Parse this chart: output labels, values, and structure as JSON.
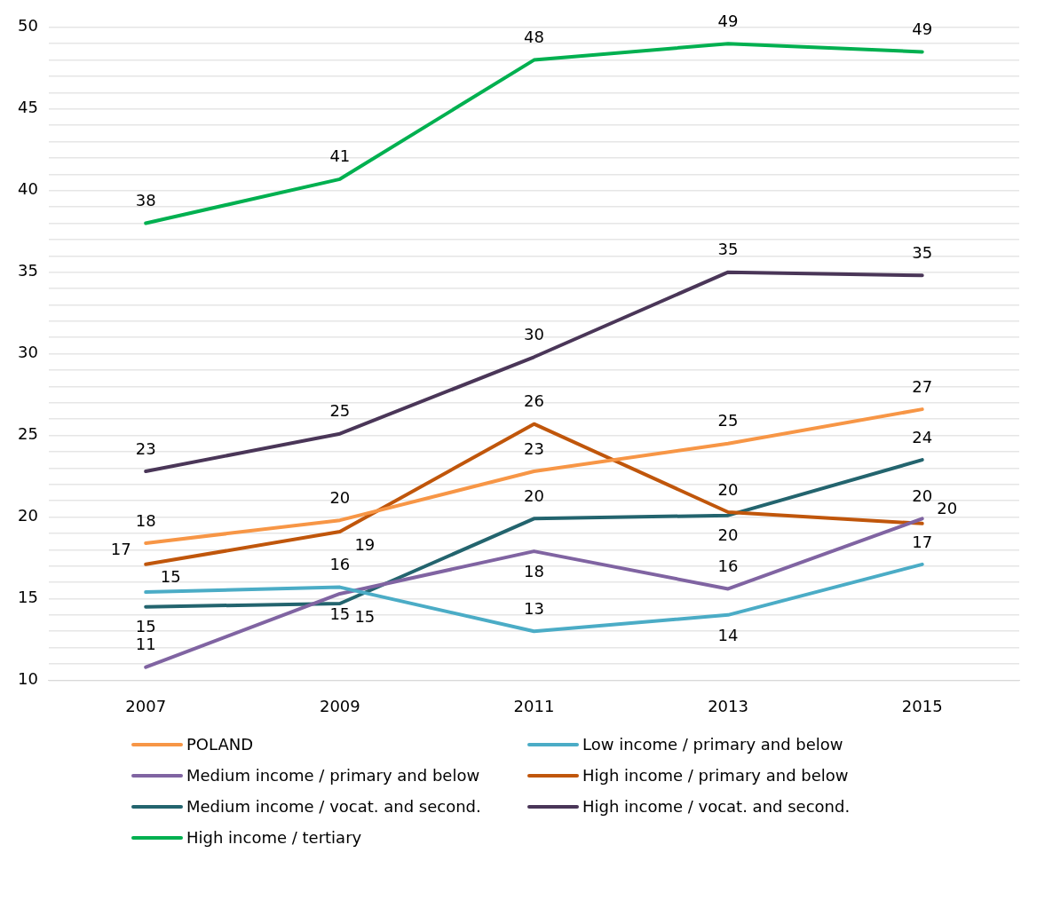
{
  "chart_data": {
    "type": "line",
    "categories": [
      "2007",
      "2009",
      "2011",
      "2013",
      "2015"
    ],
    "series": [
      {
        "name": "POLAND",
        "color": "#f79646",
        "values": [
          18.4,
          19.8,
          22.8,
          24.5,
          26.6
        ],
        "value_labels": [
          "18",
          "20",
          "23",
          "25",
          "27"
        ]
      },
      {
        "name": "Low income / primary and below",
        "color": "#4bacc6",
        "values": [
          15.4,
          15.7,
          13.0,
          14.0,
          17.1
        ],
        "value_labels": [
          "15",
          "16",
          "13",
          "14",
          "17"
        ]
      },
      {
        "name": "Medium income / primary and below",
        "color": "#8064a2",
        "values": [
          10.8,
          15.3,
          17.9,
          15.6,
          19.9
        ],
        "value_labels": [
          "11",
          "15",
          "18",
          "16",
          "20"
        ]
      },
      {
        "name": "High income / primary and below",
        "color": "#c0560b",
        "values": [
          17.1,
          19.1,
          25.7,
          20.3,
          19.6
        ],
        "value_labels": [
          "17",
          "19",
          "26",
          "20",
          "20"
        ]
      },
      {
        "name": "Medium income / vocat. and second.",
        "color": "#23646e",
        "values": [
          14.5,
          14.7,
          19.9,
          20.1,
          23.5
        ],
        "value_labels": [
          "15",
          "15",
          "20",
          "20",
          "24"
        ]
      },
      {
        "name": "High income / vocat. and second.",
        "color": "#4a3658",
        "values": [
          22.8,
          25.1,
          29.8,
          35.0,
          34.8
        ],
        "value_labels": [
          "23",
          "25",
          "30",
          "35",
          "35"
        ]
      },
      {
        "name": "High income / tertiary",
        "color": "#00b050",
        "values": [
          38.0,
          40.7,
          48.0,
          49.0,
          48.5
        ],
        "value_labels": [
          "38",
          "41",
          "48",
          "49",
          "49"
        ]
      }
    ],
    "ylim": [
      10,
      50
    ],
    "yticks": [
      10,
      {
        "value": 11,
        "label": null
      },
      {
        "value": 12,
        "label": null
      },
      {
        "value": 13,
        "label": null
      },
      {
        "value": 14,
        "label": null
      },
      15,
      {
        "value": 16,
        "label": null
      },
      {
        "value": 17,
        "label": null
      },
      {
        "value": 18,
        "label": null
      },
      {
        "value": 19,
        "label": null
      },
      20,
      {
        "value": 21,
        "label": null
      },
      {
        "value": 22,
        "label": null
      },
      {
        "value": 23,
        "label": null
      },
      {
        "value": 24,
        "label": null
      },
      25,
      {
        "value": 26,
        "label": null
      },
      {
        "value": 27,
        "label": null
      },
      {
        "value": 28,
        "label": null
      },
      {
        "value": 29,
        "label": null
      },
      30,
      {
        "value": 31,
        "label": null
      },
      {
        "value": 32,
        "label": null
      },
      {
        "value": 33,
        "label": null
      },
      {
        "value": 34,
        "label": null
      },
      35,
      {
        "value": 36,
        "label": null
      },
      {
        "value": 37,
        "label": null
      },
      {
        "value": 38,
        "label": null
      },
      {
        "value": 39,
        "label": null
      },
      40,
      {
        "value": 41,
        "label": null
      },
      {
        "value": 42,
        "label": null
      },
      {
        "value": 43,
        "label": null
      },
      {
        "value": 44,
        "label": null
      },
      45,
      {
        "value": 46,
        "label": null
      },
      {
        "value": 47,
        "label": null
      },
      {
        "value": 48,
        "label": null
      },
      {
        "value": 49,
        "label": null
      },
      50
    ],
    "grid": "y",
    "legend": "bottom",
    "marker": "none",
    "line_style": "solid"
  }
}
